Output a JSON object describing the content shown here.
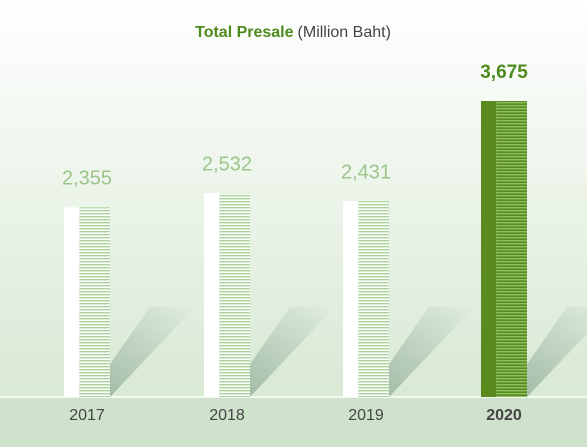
{
  "chart_data": {
    "type": "bar",
    "title": "Total Presale",
    "subtitle": "(Million Baht)",
    "categories": [
      "2017",
      "2018",
      "2019",
      "2020"
    ],
    "values": [
      2355,
      2532,
      2431,
      3675
    ],
    "value_labels": [
      "2,355",
      "2,532",
      "2,431",
      "3,675"
    ],
    "colors": [
      "#ffffff",
      "#ffffff",
      "#ffffff",
      "#5b8a1f"
    ],
    "label_colors": [
      "#9cc58c",
      "#9cc58c",
      "#9cc58c",
      "#4f8a1e"
    ]
  }
}
